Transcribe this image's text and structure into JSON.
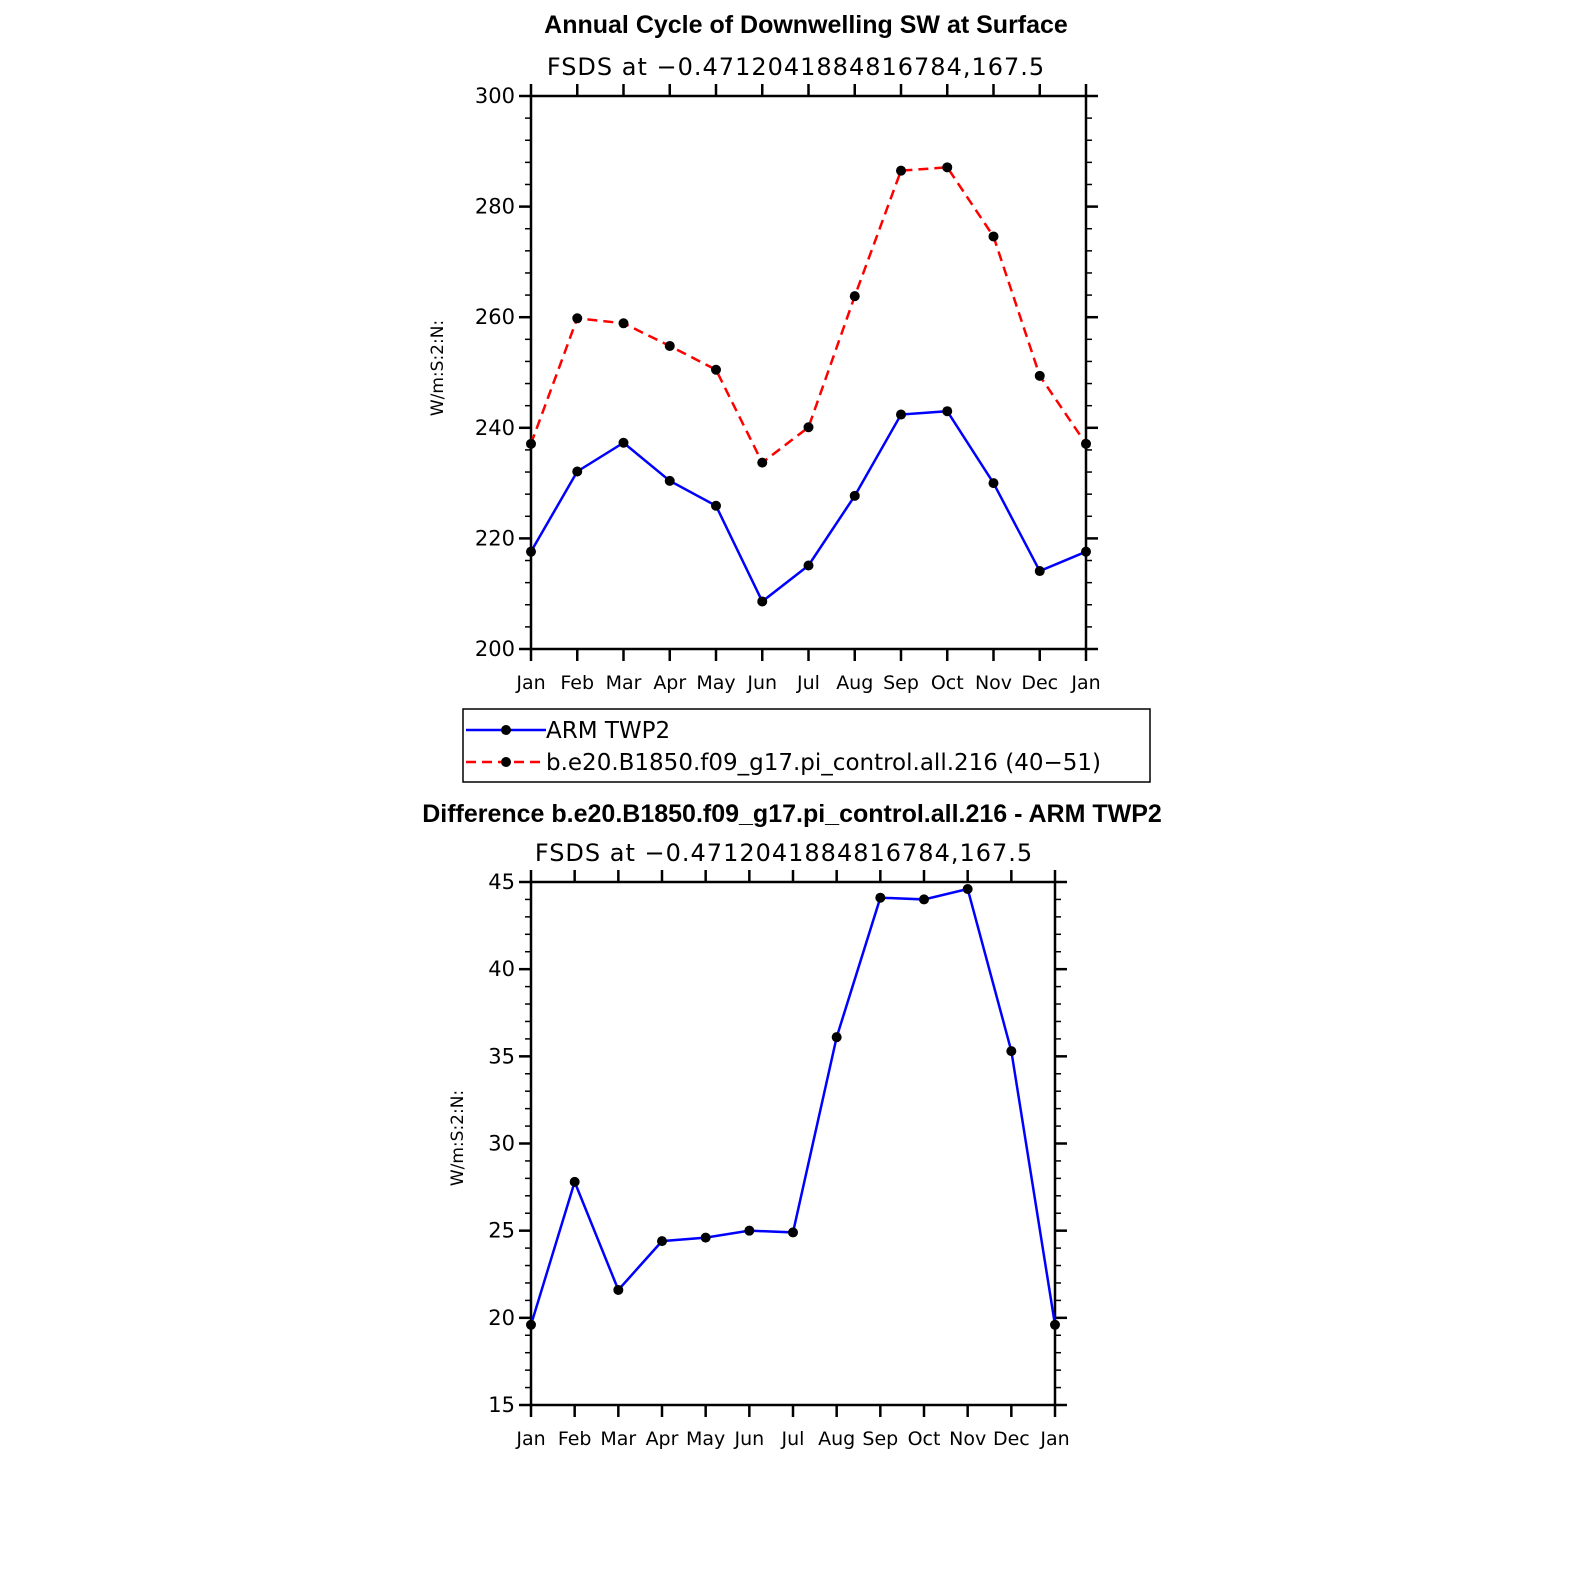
{
  "chart_data": [
    {
      "type": "line",
      "title": "Annual Cycle of Downwelling SW at Surface",
      "subtitle": "FSDS at −0.4712041884816784,167.5",
      "ylabel": "W/m:S:2:N:",
      "xlabel": "",
      "categories": [
        "Jan",
        "Feb",
        "Mar",
        "Apr",
        "May",
        "Jun",
        "Jul",
        "Aug",
        "Sep",
        "Oct",
        "Nov",
        "Dec",
        "Jan"
      ],
      "ylim": [
        200,
        300
      ],
      "yticks": [
        200,
        220,
        240,
        260,
        280,
        300
      ],
      "series": [
        {
          "name": "ARM TWP2",
          "color": "#0000ff",
          "dash": "solid",
          "values": [
            217.6,
            232.1,
            237.3,
            230.4,
            225.9,
            208.6,
            215.1,
            227.7,
            242.4,
            243.0,
            230.0,
            214.1,
            217.6
          ]
        },
        {
          "name": "b.e20.B1850.f09_g17.pi_control.all.216 (40−51)",
          "color": "#ff0000",
          "dash": "dashed",
          "values": [
            237.1,
            259.8,
            258.9,
            254.8,
            250.5,
            233.7,
            240.1,
            263.8,
            286.5,
            287.1,
            274.6,
            249.4,
            237.1
          ]
        }
      ],
      "legend": "below"
    },
    {
      "type": "line",
      "title": "Difference b.e20.B1850.f09_g17.pi_control.all.216 - ARM TWP2",
      "subtitle": "FSDS at −0.4712041884816784,167.5",
      "ylabel": "W/m:S:2:N:",
      "xlabel": "",
      "categories": [
        "Jan",
        "Feb",
        "Mar",
        "Apr",
        "May",
        "Jun",
        "Jul",
        "Aug",
        "Sep",
        "Oct",
        "Nov",
        "Dec",
        "Jan"
      ],
      "ylim": [
        15,
        45
      ],
      "yticks": [
        15,
        20,
        25,
        30,
        35,
        40,
        45
      ],
      "series": [
        {
          "name": "",
          "color": "#0000ff",
          "dash": "solid",
          "values": [
            19.6,
            27.8,
            21.6,
            24.4,
            24.6,
            25.0,
            24.9,
            36.1,
            44.1,
            44.0,
            44.6,
            35.3,
            19.6
          ]
        }
      ]
    }
  ]
}
